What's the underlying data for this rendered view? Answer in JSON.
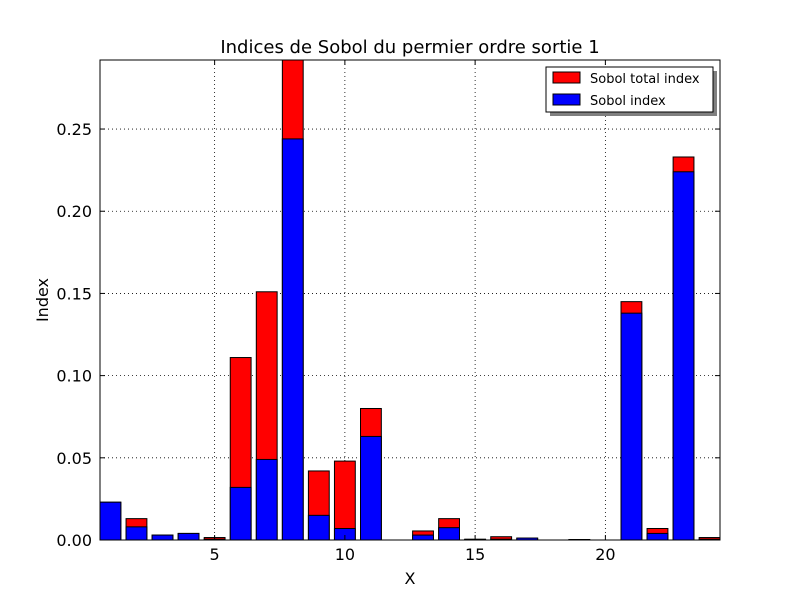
{
  "chart_data": {
    "type": "bar",
    "title": "Indices de Sobol du permier ordre sortie 1",
    "xlabel": "X",
    "ylabel": "Index",
    "xlim": [
      0.6,
      24.4
    ],
    "ylim": [
      0,
      0.292
    ],
    "xticks": [
      5,
      10,
      15,
      20
    ],
    "xtick_labels": [
      "5",
      "10",
      "15",
      "20"
    ],
    "yticks": [
      0.0,
      0.05,
      0.1,
      0.15,
      0.2,
      0.25
    ],
    "ytick_labels": [
      "0.00",
      "0.05",
      "0.10",
      "0.15",
      "0.20",
      "0.25"
    ],
    "grid": true,
    "grid_style": "dotted",
    "legend_position": "top-right",
    "x": [
      1,
      2,
      3,
      4,
      5,
      6,
      7,
      8,
      9,
      10,
      11,
      12,
      13,
      14,
      15,
      16,
      17,
      18,
      19,
      20,
      21,
      22,
      23,
      24
    ],
    "series": [
      {
        "name": "Sobol total index",
        "color": "#ff0000",
        "values": [
          0.023,
          0.013,
          0.003,
          0.004,
          0.0015,
          0.111,
          0.151,
          0.292,
          0.042,
          0.048,
          0.08,
          0.0,
          0.0055,
          0.013,
          0.0005,
          0.002,
          0.001,
          0.0,
          0.0003,
          0.0,
          0.145,
          0.007,
          0.233,
          0.0015
        ]
      },
      {
        "name": "Sobol index",
        "color": "#0000ff",
        "values": [
          0.023,
          0.008,
          0.003,
          0.004,
          0.0005,
          0.032,
          0.049,
          0.244,
          0.015,
          0.007,
          0.063,
          0.0,
          0.003,
          0.0075,
          0.0003,
          0.0005,
          0.0012,
          0.0,
          0.0002,
          0.0,
          0.138,
          0.004,
          0.224,
          0.0005
        ]
      }
    ]
  }
}
